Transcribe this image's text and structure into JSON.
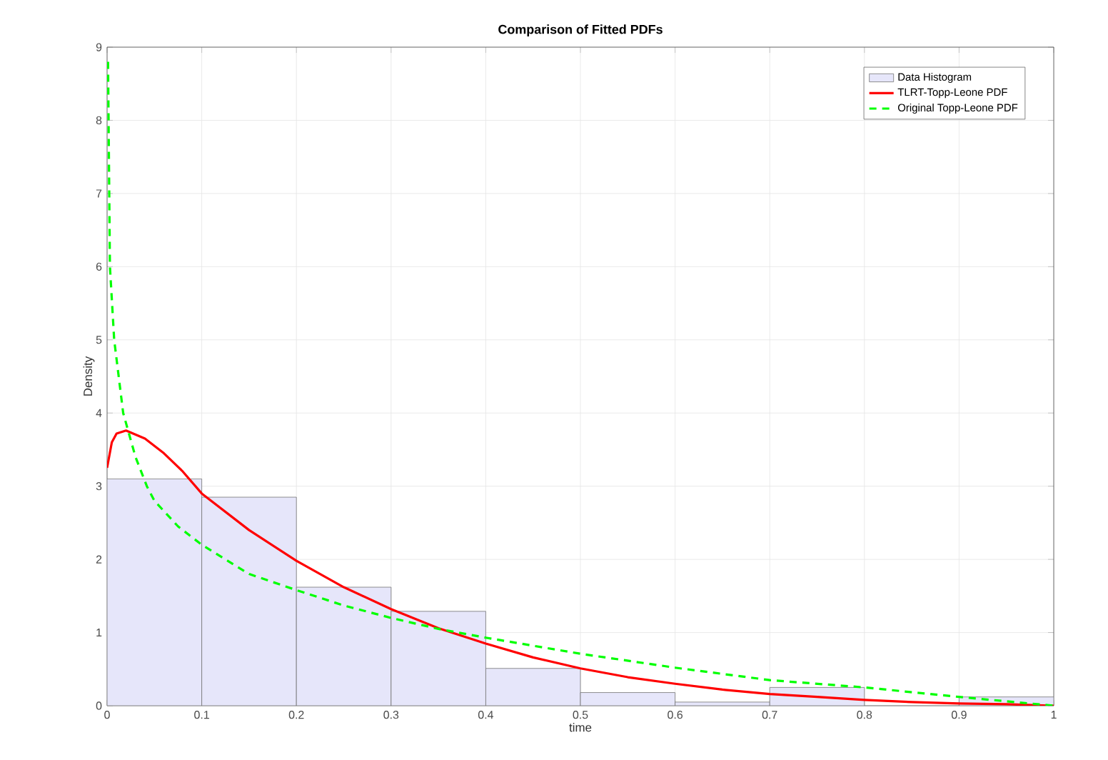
{
  "chart_data": {
    "type": "histogram",
    "title": "Comparison of Fitted PDFs",
    "xlabel": "time",
    "ylabel": "Density",
    "xlim": [
      0,
      1
    ],
    "ylim": [
      0,
      9
    ],
    "xticks": [
      0,
      0.1,
      0.2,
      0.3,
      0.4,
      0.5,
      0.6,
      0.7,
      0.8,
      0.9,
      1
    ],
    "yticks": [
      0,
      1,
      2,
      3,
      4,
      5,
      6,
      7,
      8,
      9
    ],
    "grid": true,
    "legend": "top right",
    "series": [
      {
        "name": "Data Histogram",
        "color": "#e6e6fa",
        "bins": [
          0,
          0.1,
          0.2,
          0.3,
          0.4,
          0.5,
          0.6,
          0.7,
          0.8,
          0.9,
          1
        ],
        "values": [
          3.1,
          2.85,
          1.62,
          1.29,
          0.51,
          0.18,
          0.05,
          0.25,
          0,
          0.12
        ]
      },
      {
        "type": "line",
        "name": "TLRT-Topp-Leone PDF",
        "color": "#ff0000",
        "line_style": "solid",
        "x": [
          0,
          0.005,
          0.01,
          0.02,
          0.04,
          0.06,
          0.08,
          0.1,
          0.15,
          0.2,
          0.25,
          0.3,
          0.35,
          0.4,
          0.45,
          0.5,
          0.55,
          0.6,
          0.65,
          0.7,
          0.75,
          0.8,
          0.85,
          0.9,
          0.95,
          1
        ],
        "values": [
          3.25,
          3.6,
          3.72,
          3.76,
          3.65,
          3.45,
          3.2,
          2.9,
          2.4,
          1.98,
          1.62,
          1.32,
          1.06,
          0.85,
          0.66,
          0.51,
          0.39,
          0.3,
          0.22,
          0.16,
          0.12,
          0.08,
          0.05,
          0.03,
          0.02,
          0
        ]
      },
      {
        "type": "line",
        "name": "Original Topp-Leone PDF",
        "color": "#00ff00",
        "line_style": "dashed",
        "x": [
          0.001,
          0.003,
          0.0075,
          0.017,
          0.03,
          0.042,
          0.05,
          0.075,
          0.1,
          0.15,
          0.2,
          0.25,
          0.3,
          0.35,
          0.4,
          0.5,
          0.6,
          0.7,
          0.8,
          0.9,
          1
        ],
        "values": [
          8.8,
          6,
          5,
          4,
          3.4,
          3,
          2.8,
          2.45,
          2.2,
          1.8,
          1.58,
          1.37,
          1.2,
          1.05,
          0.93,
          0.71,
          0.52,
          0.35,
          0.25,
          0.12,
          0
        ]
      }
    ]
  }
}
